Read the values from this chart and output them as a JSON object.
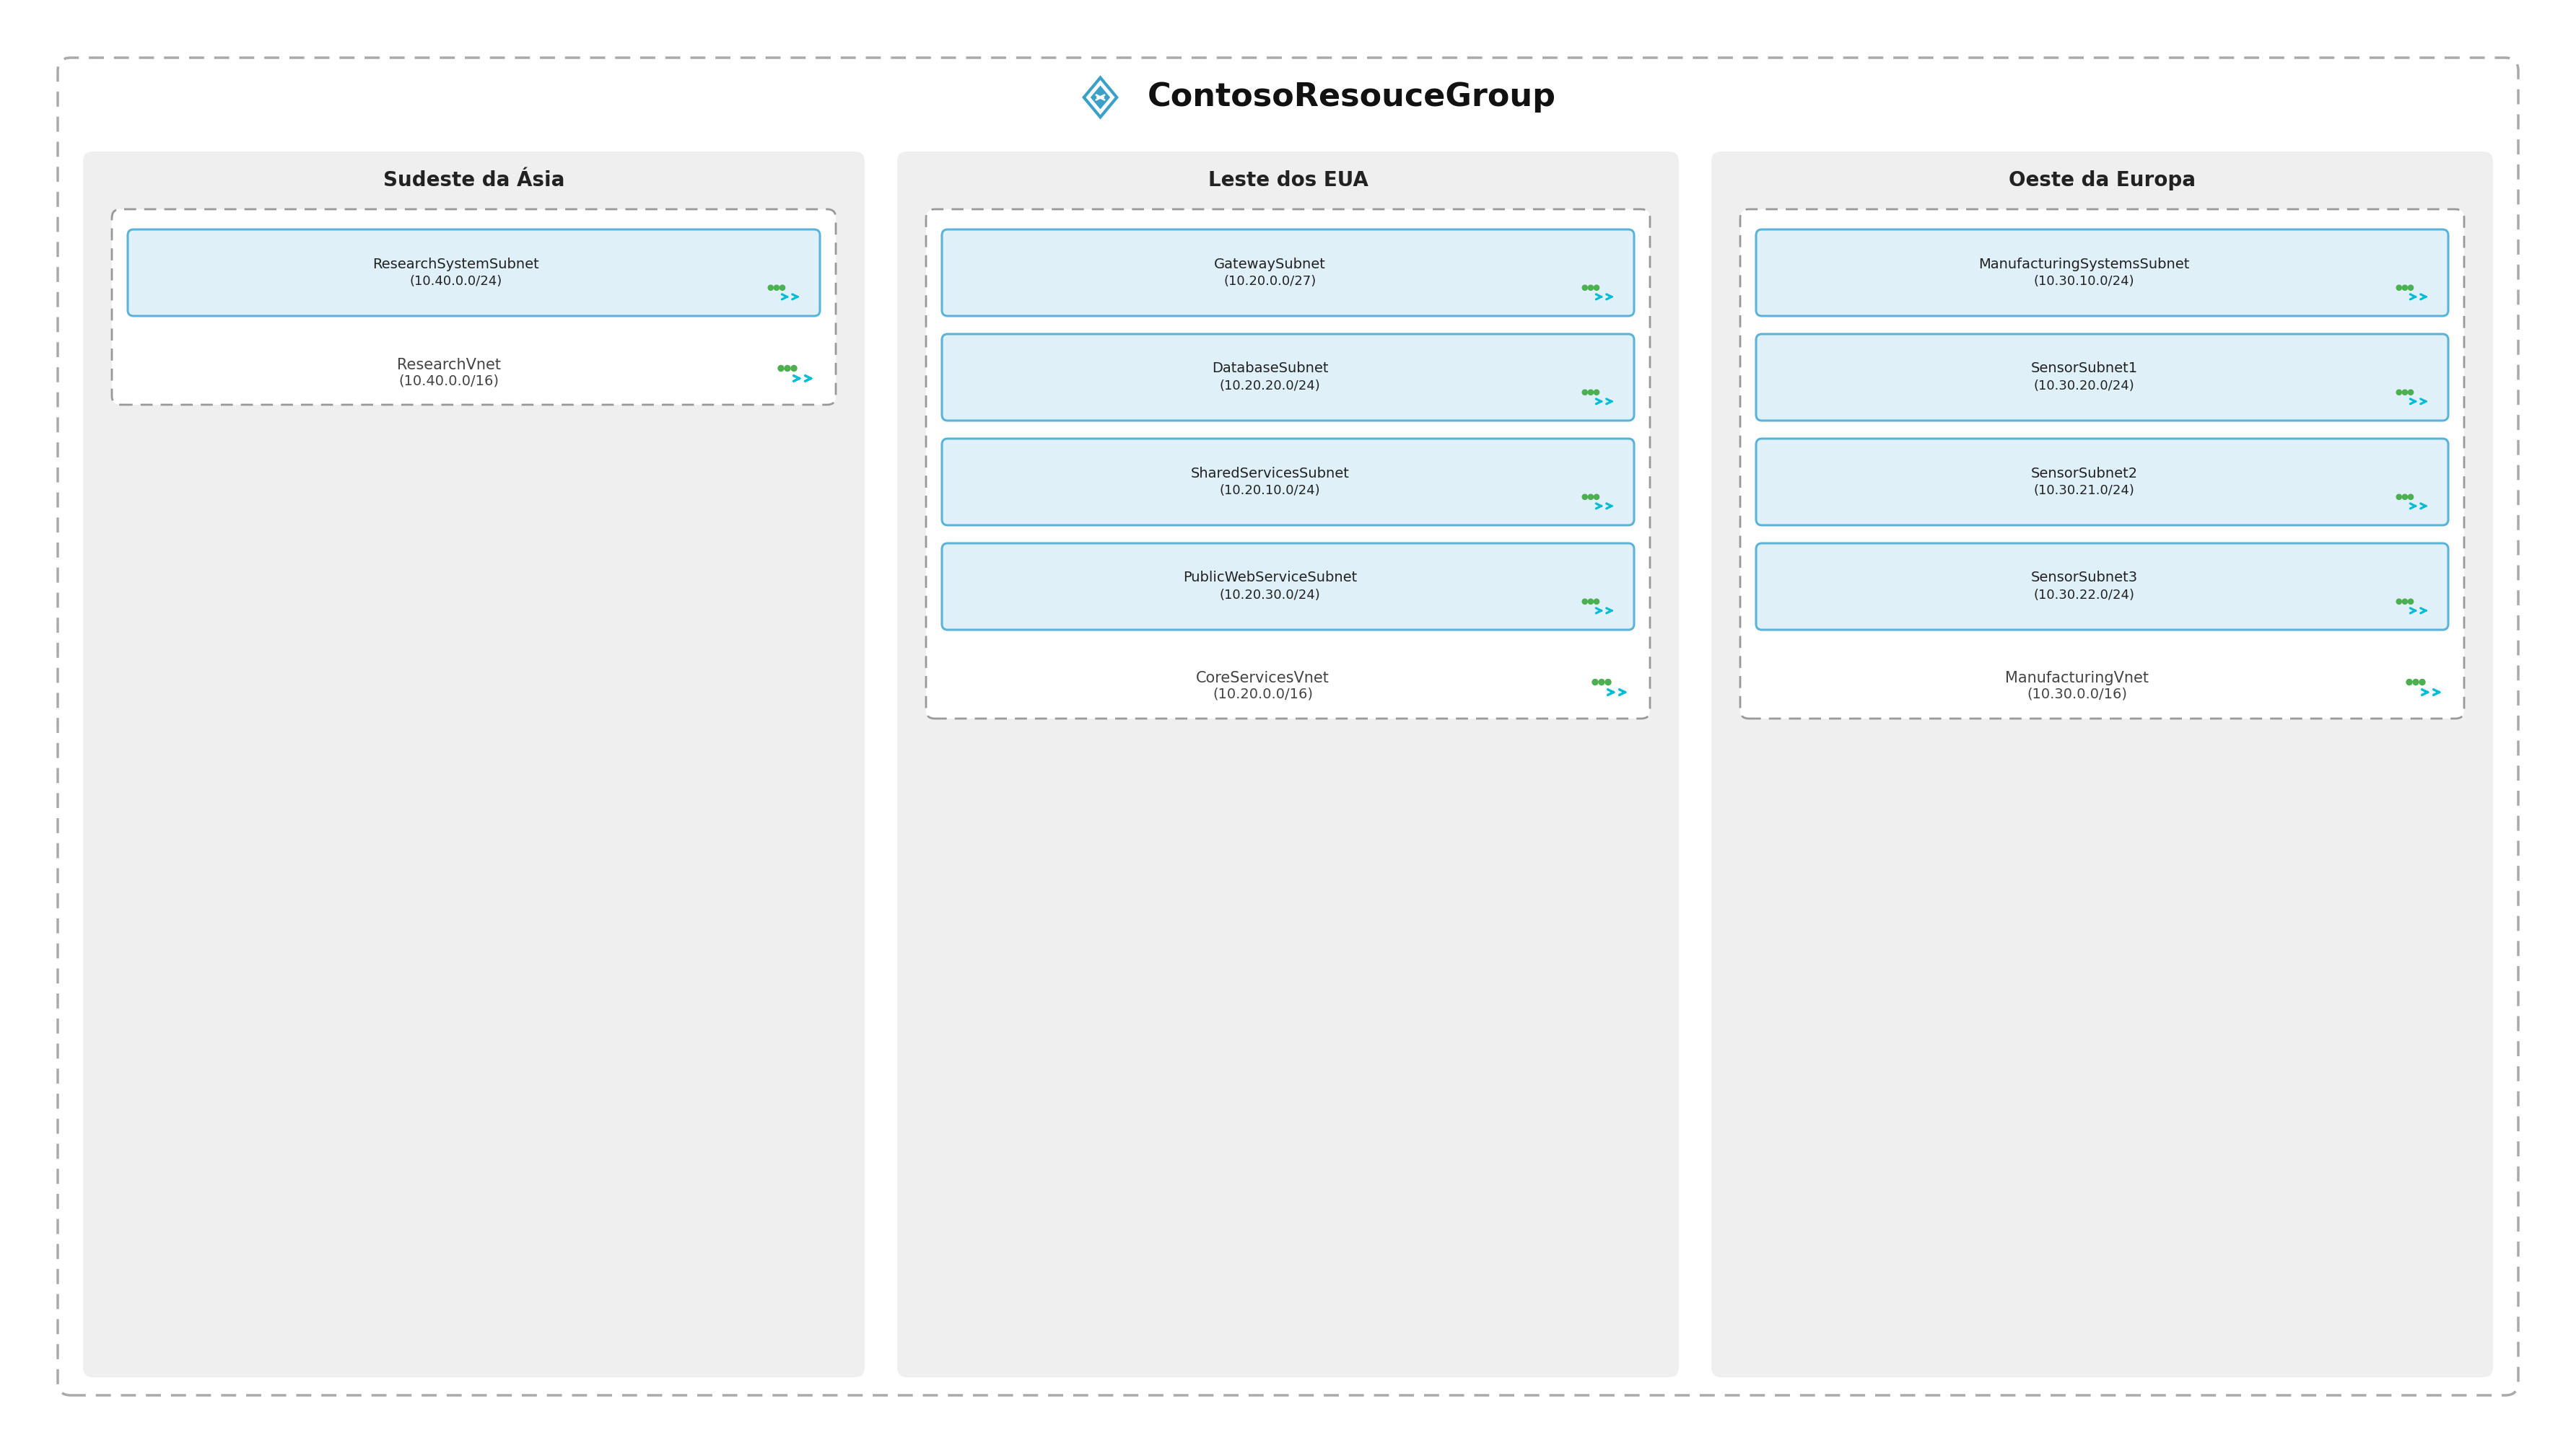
{
  "title": "ContosoResouceGroup",
  "title_fontsize": 32,
  "background_color": "#ffffff",
  "outer_border_color": "#aaaaaa",
  "region_bg_color": "#efefef",
  "subnet_bg_color": "#dff0f8",
  "subnet_border_color": "#5bb4d8",
  "text_color": "#222222",
  "vnet_text_color": "#444444",
  "label_fontsize": 15,
  "subnet_fontsize": 14,
  "region_fontsize": 20,
  "regions": [
    {
      "name": "Sudeste da Ásia",
      "vnet_name": "ResearchVnet",
      "vnet_cidr": "(10.40.0.0/16)",
      "subnets": [
        {
          "name": "ResearchSystemSubnet",
          "cidr": "(10.40.0.0/24)"
        }
      ]
    },
    {
      "name": "Leste dos EUA",
      "vnet_name": "CoreServicesVnet",
      "vnet_cidr": "(10.20.0.0/16)",
      "subnets": [
        {
          "name": "GatewaySubnet",
          "cidr": "(10.20.0.0/27)"
        },
        {
          "name": "DatabaseSubnet",
          "cidr": "(10.20.20.0/24)"
        },
        {
          "name": "SharedServicesSubnet",
          "cidr": "(10.20.10.0/24)"
        },
        {
          "name": "PublicWebServiceSubnet",
          "cidr": "(10.20.30.0/24)"
        }
      ]
    },
    {
      "name": "Oeste da Europa",
      "vnet_name": "ManufacturingVnet",
      "vnet_cidr": "(10.30.0.0/16)",
      "subnets": [
        {
          "name": "ManufacturingSystemsSubnet",
          "cidr": "(10.30.10.0/24)"
        },
        {
          "name": "SensorSubnet1",
          "cidr": "(10.30.20.0/24)"
        },
        {
          "name": "SensorSubnet2",
          "cidr": "(10.30.21.0/24)"
        },
        {
          "name": "SensorSubnet3",
          "cidr": "(10.30.22.0/24)"
        }
      ]
    }
  ]
}
